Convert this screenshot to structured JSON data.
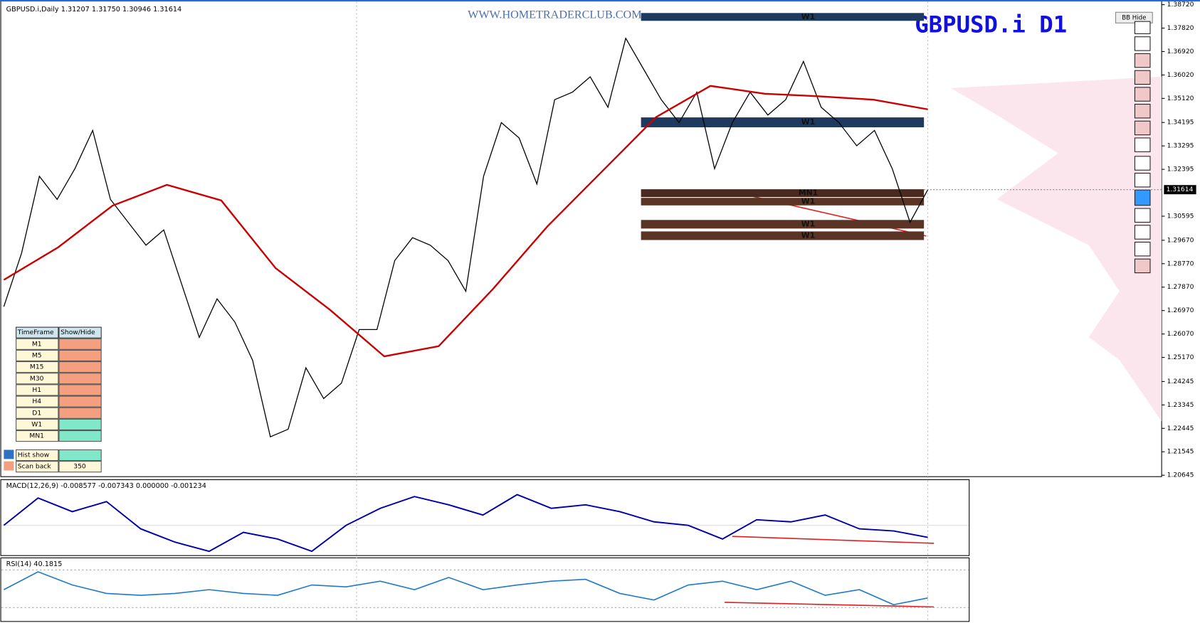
{
  "header_text": "GBPUSD.i,Daily  1.31207 1.31750 1.30946 1.31614",
  "watermark": "WWW.HOMETRADERCLUB.COM",
  "symbol_title": "GBPUSD.i  D1",
  "bb_button": "BB Hide",
  "chart_data": {
    "type": "line",
    "ylim": [
      1.2059,
      1.389
    ],
    "yticks": [
      {
        "value": 1.3872,
        "label": "1.38720"
      },
      {
        "value": 1.3782,
        "label": "1.37820"
      },
      {
        "value": 1.3692,
        "label": "1.36920"
      },
      {
        "value": 1.3602,
        "label": "1.36020"
      },
      {
        "value": 1.3512,
        "label": "1.35120"
      },
      1.34195,
      1.33295,
      1.32395,
      1.30595,
      {
        "value": 1.2967,
        "label": "1.29670"
      },
      {
        "value": 1.2877,
        "label": "1.28770"
      },
      {
        "value": 1.2787,
        "label": "1.27870"
      },
      {
        "value": 1.2697,
        "label": "1.26970"
      },
      {
        "value": 1.2607,
        "label": "1.26070"
      },
      {
        "value": 1.2517,
        "label": "1.25170"
      },
      1.24245,
      1.23345,
      1.22445,
      1.21545,
      1.20645
    ],
    "current_price": 1.31614,
    "series": [
      {
        "color": "#000000",
        "values": [
          1.2712,
          1.2918,
          1.3213,
          1.3124,
          1.3242,
          1.3389,
          1.3124,
          1.3036,
          1.2948,
          1.3007,
          1.28,
          1.2594,
          1.2742,
          1.2653,
          1.2506,
          1.2212,
          1.2241,
          1.2477,
          1.2359,
          1.2418,
          1.2624,
          1.2624,
          1.2889,
          1.2977,
          1.2948,
          1.2889,
          1.2771,
          1.3213,
          1.3419,
          1.336,
          1.3183,
          1.3507,
          1.3536,
          1.3595,
          1.3478,
          1.3743,
          1.3625,
          1.3507,
          1.3419,
          1.3536,
          1.3242,
          1.3419,
          1.3536,
          1.3448,
          1.3507,
          1.3654,
          1.3478,
          1.3419,
          1.333,
          1.3389,
          1.3242,
          1.3036,
          1.3161
        ]
      },
      {
        "color": "#cc0000",
        "values": [
          1.2815,
          1.294,
          1.31,
          1.318,
          1.312,
          1.286,
          1.27,
          1.2521,
          1.256,
          1.278,
          1.302,
          1.323,
          1.344,
          1.356,
          1.353,
          1.352,
          1.3507,
          1.347
        ]
      }
    ],
    "zones": [
      {
        "label": "W1",
        "top": 1.384,
        "bottom": 1.381,
        "color": "#1f3a5f"
      },
      {
        "label": "W1",
        "top": 1.3439,
        "bottom": 1.3401,
        "color": "#1f3a5f"
      },
      {
        "label": "MN1",
        "top": 1.3163,
        "bottom": 1.3133,
        "color": "#4a2a20"
      },
      {
        "label": "W1",
        "top": 1.313,
        "bottom": 1.3101,
        "color": "#5a3424"
      },
      {
        "label": "W1",
        "top": 1.3045,
        "bottom": 1.3012,
        "color": "#5a3424"
      },
      {
        "label": "W1",
        "top": 1.3001,
        "bottom": 1.2968,
        "color": "#5a3424"
      }
    ]
  },
  "macd": {
    "label": "MACD(12,26,9) -0.008577 -0.007343 0.000000 -0.001234",
    "color": "#0000aa",
    "ylim": [
      -0.02,
      0.025
    ],
    "values": [
      0,
      0.0196,
      0.0098,
      0.017,
      -0.0025,
      -0.012,
      -0.0186,
      -0.005,
      -0.0098,
      -0.0186,
      0,
      0.0122,
      0.0206,
      0.0147,
      0.0074,
      0.022,
      0.0122,
      0.0147,
      0.0098,
      0.0025,
      0,
      -0.0098,
      0.004,
      0.0025,
      0.0074,
      -0.0025,
      -0.004,
      -0.0086
    ]
  },
  "rsi": {
    "label": "RSI(14) 40.1815",
    "color": "#1e7ac8",
    "ylim": [
      16,
      82
    ],
    "levels": [
      70,
      30
    ],
    "values": [
      49,
      68,
      54,
      45,
      43,
      45,
      49,
      45,
      43,
      54,
      52,
      58,
      49,
      62,
      49,
      54,
      58,
      60,
      45,
      38,
      54,
      58,
      49,
      58,
      43,
      49,
      33,
      40.1815
    ]
  },
  "panel": {
    "header": [
      "TimeFrame",
      "Show/Hide"
    ],
    "rows": [
      {
        "tf": "M1",
        "show": false
      },
      {
        "tf": "M5",
        "show": false
      },
      {
        "tf": "M15",
        "show": false
      },
      {
        "tf": "M30",
        "show": false
      },
      {
        "tf": "H1",
        "show": false
      },
      {
        "tf": "H4",
        "show": false
      },
      {
        "tf": "D1",
        "show": false
      },
      {
        "tf": "W1",
        "show": true
      },
      {
        "tf": "MN1",
        "show": true
      }
    ],
    "on_color": "#80e8c8",
    "off_color": "#f4a080",
    "hist_show": "Hist show",
    "scan_back": "Scan back",
    "scan_back_value": 350
  }
}
